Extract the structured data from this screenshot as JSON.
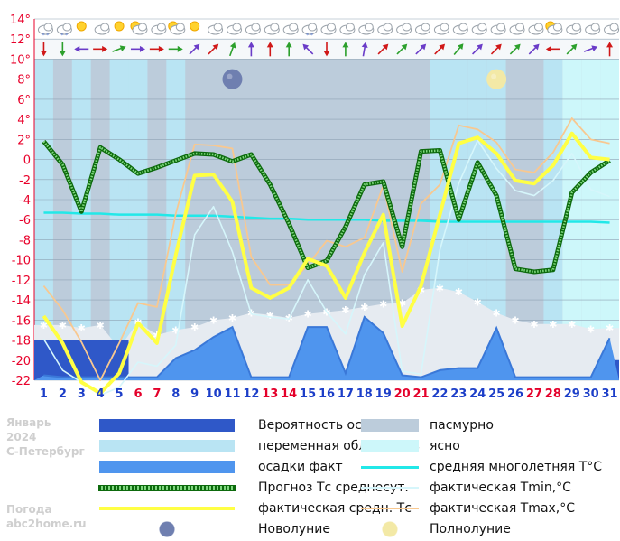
{
  "colors": {
    "bg_cloudy": "#bcccdb",
    "bg_partly": "#b9e4f3",
    "bg_clear": "#cdf7fa",
    "probability": "#2f58c8",
    "precip_fact": "#4f95ee",
    "forecast": "#1f8f1f",
    "actual_avg": "#ffff44",
    "norm": "#22e8e8",
    "tmin": "#d6f6fb",
    "tmax": "#f8c890",
    "day_red": "#e4002a",
    "day_blue": "#1c3ec8",
    "axis": "#e8002a"
  },
  "icons": {
    "weather": [
      "cloud-snow-icon",
      "cloud-snow-icon",
      "sun-icon",
      "cloud-icon",
      "sun-icon",
      "sun-cloud-icon",
      "cloud-icon",
      "sun-cloud-icon",
      "sun-icon",
      "cloud-icon",
      "cloud-icon",
      "cloud-icon",
      "cloud-icon",
      "cloud-icon",
      "cloud-snow-icon",
      "cloud-icon",
      "cloud-icon",
      "cloud-icon",
      "cloud-icon",
      "cloud-icon",
      "cloud-icon",
      "cloud-icon",
      "cloud-icon",
      "cloud-icon",
      "cloud-icon",
      "cloud-icon",
      "cloud-icon",
      "sun-cloud-icon",
      "cloud-icon",
      "cloud-icon",
      "cloud-icon"
    ],
    "wind_deg": [
      0,
      0,
      90,
      270,
      250,
      270,
      270,
      270,
      225,
      225,
      200,
      180,
      180,
      180,
      135,
      0,
      180,
      190,
      225,
      225,
      225,
      225,
      220,
      225,
      225,
      225,
      225,
      90,
      225,
      250,
      180
    ]
  },
  "chart_data": {
    "type": "line",
    "x": [
      1,
      2,
      3,
      4,
      5,
      6,
      7,
      8,
      9,
      10,
      11,
      12,
      13,
      14,
      15,
      16,
      17,
      18,
      19,
      20,
      21,
      22,
      23,
      24,
      25,
      26,
      27,
      28,
      29,
      30,
      31
    ],
    "red_days": [
      6,
      7,
      13,
      14,
      20,
      21,
      27,
      28
    ],
    "y_ticks": [
      "14°",
      "12°",
      "10°",
      "8°",
      "6°",
      "4°",
      "2°",
      "0",
      "-2",
      "-4",
      "-6",
      "-8",
      "-10",
      "-12",
      "-14",
      "-16",
      "-18",
      "-20",
      "-22"
    ],
    "ylim": [
      -22,
      14
    ],
    "series": [
      {
        "name": "Прогноз Тс среднесут.",
        "values": [
          1.8,
          -0.5,
          -5.2,
          1.2,
          0,
          -1.4,
          -0.8,
          -0.1,
          0.6,
          0.5,
          -0.2,
          0.5,
          -2.5,
          -6.4,
          -10.8,
          -10.1,
          -6.7,
          -2.5,
          -2.2,
          -8.7,
          0.8,
          0.9,
          -6,
          -0.3,
          -3.6,
          -10.9,
          -11.2,
          -11,
          -3.3,
          -1.3,
          -0.1
        ]
      },
      {
        "name": "фактическая средн. Тс",
        "values": [
          -15.6,
          -18.3,
          -22.2,
          -23.3,
          -21.3,
          -16.3,
          -18.3,
          -9.5,
          -1.6,
          -1.5,
          -4.2,
          -12.8,
          -13.8,
          -12.8,
          -9.9,
          -10.6,
          -13.8,
          -9.3,
          -5.5,
          -16.6,
          -12.6,
          -5.5,
          1.6,
          2.2,
          0.6,
          -2.1,
          -2.4,
          -0.6,
          2.6,
          0.2,
          0
        ]
      },
      {
        "name": "фактическая Tmin,°C",
        "values": [
          -17.9,
          -21,
          -22.2,
          -23.5,
          -22.7,
          -20.2,
          -20.6,
          -18.5,
          -7.5,
          -4.7,
          -9.2,
          -15.4,
          -15.7,
          -15.9,
          -12,
          -15.2,
          -17.4,
          -11.5,
          -8.3,
          -21.1,
          -21.4,
          -9,
          -2.4,
          1.9,
          -0.9,
          -3.1,
          -3.6,
          -2.1,
          0.6,
          -3,
          -3.7
        ]
      },
      {
        "name": "фактическая Tmax,°C",
        "values": [
          -12.6,
          -15,
          -18.2,
          -22,
          -18.3,
          -14.3,
          -14.7,
          -5.4,
          1.5,
          1.4,
          1.1,
          -9.7,
          -12.5,
          -12.5,
          -10.5,
          -8.1,
          -8.7,
          -7.8,
          -2.6,
          -11.2,
          -4.4,
          -2.5,
          3.4,
          3,
          1.7,
          -1,
          -1.3,
          0.7,
          4.1,
          2,
          1.6
        ]
      },
      {
        "name": "средняя многолетняя Т°С",
        "values": [
          -5.3,
          -5.3,
          -5.4,
          -5.4,
          -5.5,
          -5.5,
          -5.5,
          -5.6,
          -5.6,
          -5.6,
          -5.7,
          -5.8,
          -5.9,
          -5.9,
          -6,
          -6,
          -6,
          -6,
          -6.1,
          -6.1,
          -6.1,
          -6.2,
          -6.2,
          -6.2,
          -6.2,
          -6.2,
          -6.2,
          -6.2,
          -6.2,
          -6.2,
          -6.3
        ]
      },
      {
        "name": "Вероятность осадков",
        "values": [
          -18,
          -18,
          -18,
          -18,
          -18,
          -22,
          -22,
          -22,
          -22,
          -22,
          -22,
          -22,
          -22,
          -22,
          -22,
          -22,
          -22,
          -22,
          -22,
          -22,
          -22,
          -22,
          -22,
          -22,
          -22,
          -22,
          -22,
          -22,
          -22,
          -22,
          -20
        ]
      },
      {
        "name": "осадки факт",
        "values": [
          -21.5,
          -21.7,
          -21.7,
          -21.7,
          -21.7,
          -21.7,
          -21.7,
          -19.8,
          -19.0,
          -17.7,
          -16.7,
          -21.7,
          -21.7,
          -21.7,
          -16.7,
          -16.7,
          -21.3,
          -15.7,
          -17.3,
          -21.5,
          -21.7,
          -21.0,
          -20.8,
          -20.8,
          -16.8,
          -21.7,
          -21.7,
          -21.7,
          -21.7,
          -21.7,
          -17.8
        ]
      },
      {
        "name": "пасмурно",
        "values": [
          -16.5,
          -16.5,
          -16.8,
          -16.5,
          -18.8,
          -16.2,
          -17.5,
          -17.0,
          -16.7,
          -16.0,
          -15.8,
          -15.3,
          -15.5,
          -15.8,
          -15.4,
          -15.2,
          -15.0,
          -14.7,
          -14.4,
          -14.3,
          -13.0,
          -12.8,
          -13.2,
          -14.2,
          -15.3,
          -16.0,
          -16.4,
          -16.4,
          -16.4,
          -16.9,
          -16.8
        ]
      }
    ],
    "partly_cloudy_days": [
      1,
      3,
      5,
      6,
      8,
      22,
      23,
      24,
      25,
      28
    ],
    "clear_days": [
      29,
      30,
      31
    ]
  },
  "moon": {
    "new_day": 11,
    "full_day": 25
  },
  "sidebar": {
    "month": "Январь",
    "year": "2024",
    "city": "С-Петербург",
    "site1": "Погода",
    "site2": "abc2home.ru"
  },
  "legend": [
    {
      "key": "probability",
      "label": "Вероятность осадков",
      "col": 0
    },
    {
      "key": "cloudy",
      "label": "пасмурно",
      "col": 1
    },
    {
      "key": "partly",
      "label": "переменная облачность",
      "col": 0
    },
    {
      "key": "clear",
      "label": "ясно",
      "col": 1
    },
    {
      "key": "precip",
      "label": "осадки факт",
      "col": 0
    },
    {
      "key": "norm",
      "label": "средняя многолетняя Т°С",
      "col": 1
    },
    {
      "key": "forecast",
      "label": "Прогноз Тс среднесут.",
      "col": 0
    },
    {
      "key": "tmin",
      "label": "фактическая Tmin,°C",
      "col": 1
    },
    {
      "key": "actual",
      "label": "фактическая средн. Тс",
      "col": 0
    },
    {
      "key": "tmax",
      "label": "фактическая Tmax,°C",
      "col": 1
    },
    {
      "key": "newmoon",
      "label": "Новолуние",
      "col": 0
    },
    {
      "key": "fullmoon",
      "label": "Полнолуние",
      "col": 1
    }
  ]
}
